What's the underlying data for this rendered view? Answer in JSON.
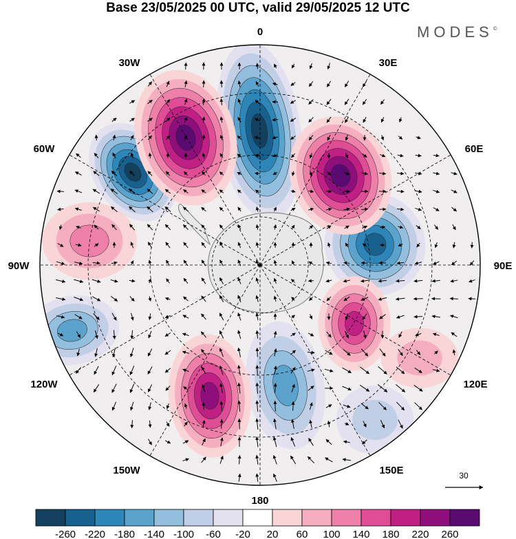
{
  "title": "Base 23/05/2025 00 UTC, valid 29/05/2025 12 UTC",
  "brand": {
    "name": "MODES",
    "mark": "©"
  },
  "longitude_labels": {
    "top": "0",
    "bottom": "180",
    "left": "90W",
    "right": "90E",
    "upper_left_1": "30W",
    "upper_left_2": "60W",
    "upper_right_1": "30E",
    "upper_right_2": "60E",
    "lower_left_1": "120W",
    "lower_left_2": "150W",
    "lower_right_1": "120E",
    "lower_right_2": "150E"
  },
  "vector_reference": {
    "value": "30"
  },
  "colorbar": {
    "colors": [
      "#12405e",
      "#18618f",
      "#2e86b8",
      "#5ba3cd",
      "#93bedd",
      "#c1cfe6",
      "#e3e1ef",
      "#ffffff",
      "#fad5d8",
      "#f5aec0",
      "#ee7fa9",
      "#df4d96",
      "#c01f84",
      "#8e0e7c",
      "#5a0b72"
    ],
    "tick_labels": [
      "-260",
      "-220",
      "-180",
      "-140",
      "-100",
      "-60",
      "-20",
      "20",
      "60",
      "100",
      "140",
      "180",
      "220",
      "260"
    ]
  },
  "anomaly_centers": [
    {
      "kind": "low",
      "level": "-260"
    },
    {
      "kind": "low",
      "level": "-260"
    },
    {
      "kind": "low",
      "level": "-220"
    },
    {
      "kind": "low",
      "level": "-140"
    },
    {
      "kind": "low",
      "level": "-140"
    },
    {
      "kind": "low",
      "level": "-60"
    },
    {
      "kind": "high",
      "level": "260"
    },
    {
      "kind": "high",
      "level": "260"
    },
    {
      "kind": "high",
      "level": "220"
    },
    {
      "kind": "high",
      "level": "180"
    },
    {
      "kind": "high",
      "level": "100"
    },
    {
      "kind": "high",
      "level": "60"
    }
  ]
}
